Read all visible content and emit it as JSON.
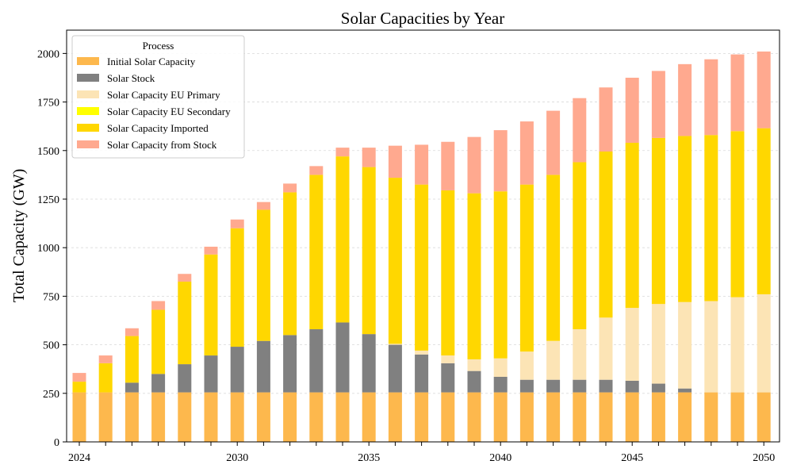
{
  "chart_data": {
    "type": "bar",
    "stacked": true,
    "title": "Solar Capacities by Year",
    "xlabel": "",
    "ylabel": "Total Capacity (GW)",
    "ylim": [
      0,
      2120
    ],
    "yticks": [
      0,
      250,
      500,
      750,
      1000,
      1250,
      1500,
      1750,
      2000
    ],
    "xtick_labels": [
      "2024",
      "",
      "",
      "",
      "",
      "",
      "2030",
      "",
      "",
      "",
      "",
      "2035",
      "",
      "",
      "",
      "",
      "2040",
      "",
      "",
      "",
      "",
      "2045",
      "",
      "",
      "",
      "",
      "2050"
    ],
    "grid": "horizontal dashed",
    "legend": {
      "title": "Process",
      "placement": "top-left"
    },
    "categories": [
      "2024",
      "2025",
      "2026",
      "2027",
      "2028",
      "2029",
      "2030",
      "2031",
      "2032",
      "2033",
      "2034",
      "2035",
      "2036",
      "2037",
      "2038",
      "2039",
      "2040",
      "2041",
      "2042",
      "2043",
      "2044",
      "2045",
      "2046",
      "2047",
      "2048",
      "2049",
      "2050"
    ],
    "series": [
      {
        "name": "Initial Solar Capacity",
        "color": "#FDB84D",
        "values": [
          255,
          255,
          255,
          255,
          255,
          255,
          255,
          255,
          255,
          255,
          255,
          255,
          255,
          255,
          255,
          255,
          255,
          255,
          255,
          255,
          255,
          255,
          255,
          255,
          255,
          255,
          255
        ]
      },
      {
        "name": "Solar Stock",
        "color": "#808080",
        "values": [
          0,
          0,
          50,
          95,
          145,
          190,
          235,
          265,
          295,
          325,
          360,
          300,
          245,
          195,
          150,
          110,
          80,
          65,
          65,
          65,
          65,
          60,
          45,
          20,
          0,
          0,
          0
        ]
      },
      {
        "name": "Solar Capacity EU Primary",
        "color": "#FCE4B5",
        "values": [
          0,
          0,
          0,
          0,
          0,
          0,
          0,
          0,
          0,
          0,
          0,
          0,
          5,
          20,
          40,
          60,
          95,
          145,
          200,
          260,
          320,
          375,
          410,
          445,
          470,
          490,
          505
        ]
      },
      {
        "name": "Solar Capacity EU Secondary",
        "color": "#FFFF00",
        "values": [
          0,
          0,
          0,
          0,
          0,
          0,
          0,
          0,
          0,
          0,
          0,
          0,
          0,
          0,
          0,
          0,
          0,
          0,
          0,
          0,
          0,
          0,
          0,
          0,
          0,
          0,
          0
        ]
      },
      {
        "name": "Solar Capacity Imported",
        "color": "#FFD700",
        "values": [
          55,
          150,
          240,
          330,
          425,
          520,
          610,
          675,
          735,
          795,
          855,
          860,
          855,
          855,
          850,
          855,
          860,
          860,
          855,
          860,
          855,
          850,
          855,
          855,
          855,
          855,
          855
        ]
      },
      {
        "name": "Solar Capacity from Stock",
        "color": "#FFA98F",
        "values": [
          45,
          40,
          40,
          45,
          40,
          40,
          45,
          40,
          45,
          45,
          45,
          100,
          165,
          205,
          250,
          290,
          315,
          325,
          330,
          330,
          330,
          335,
          345,
          370,
          390,
          395,
          395
        ]
      }
    ]
  }
}
